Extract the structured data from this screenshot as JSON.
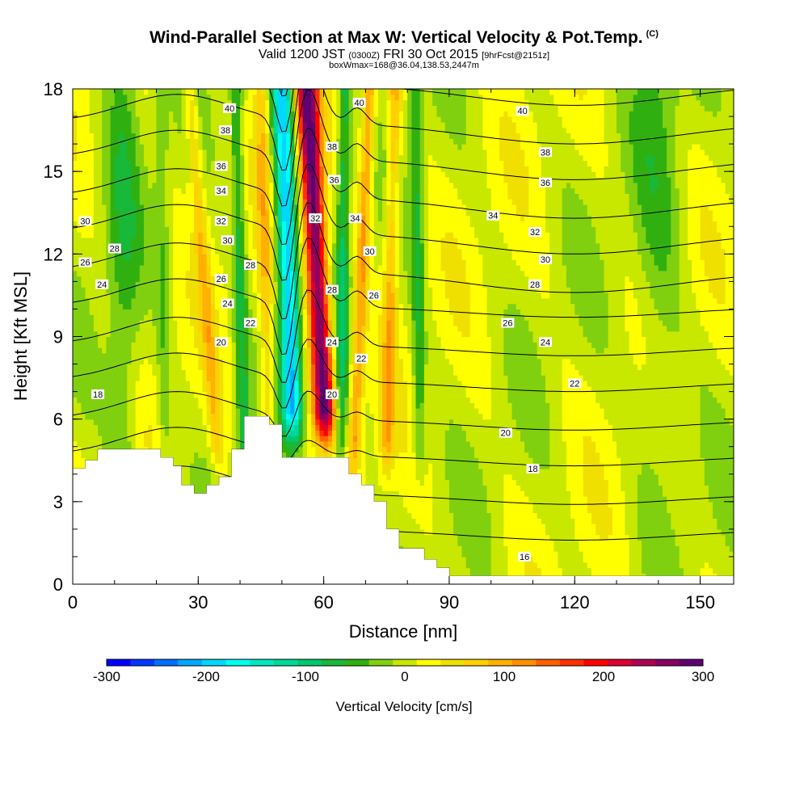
{
  "header": {
    "title": "Wind-Parallel Section at Max W: Vertical Velocity & Pot.Temp.",
    "title_tag": "(C)",
    "subtitle_main": "Valid 1200 JST",
    "subtitle_zulu": "(0300Z)",
    "subtitle_date": "FRI 30 Oct 2015",
    "subtitle_fcst": "[9hrFcst@2151z]",
    "subtitle2": "boxWmax=168@36.04,138.53,2447m"
  },
  "chart_data": {
    "type": "heatmap",
    "title": "Wind-Parallel Section at Max W: Vertical Velocity & Pot.Temp.",
    "xlabel": "Distance [nm]",
    "ylabel": "Height [Kft MSL]",
    "xlim": [
      0,
      158
    ],
    "ylim": [
      0,
      18
    ],
    "x_ticks": [
      "0",
      "30",
      "60",
      "90",
      "120",
      "150"
    ],
    "y_ticks": [
      "0",
      "3",
      "6",
      "9",
      "12",
      "15",
      "18"
    ],
    "shading_variable": "Vertical Velocity [cm/s]",
    "colorbar": {
      "label": "Vertical Velocity [cm/s]",
      "min": -300,
      "max": 300,
      "step": 25,
      "tick_values": [
        -300,
        -200,
        -100,
        0,
        100,
        200,
        300
      ],
      "tick_labels": [
        "-300",
        "-200",
        "-100",
        "0",
        "100",
        "200",
        "300"
      ],
      "colors": [
        "#0000ff",
        "#0038ff",
        "#0070ff",
        "#00a8ff",
        "#00d8ff",
        "#00ffee",
        "#00e8c0",
        "#00d898",
        "#00c870",
        "#18b838",
        "#30b010",
        "#80d010",
        "#c8e800",
        "#ffff00",
        "#f0e000",
        "#ffd000",
        "#ffb000",
        "#ff9000",
        "#ff6000",
        "#ff3000",
        "#ff0000",
        "#dd0030",
        "#b00050",
        "#880060",
        "#600070"
      ]
    },
    "velocity_updraft_band": {
      "x_base": 61,
      "x_top": 56,
      "w_peak": 300,
      "width_nm": 2.6,
      "from_height": 4.5
    },
    "velocity_downdraft_band": {
      "x_base": 53,
      "x_top": 50,
      "w_peak": -220,
      "width_nm": 2.4,
      "from_height": 4.5
    },
    "velocity_secondary_bands": [
      {
        "x_base": 35,
        "x_top": 28,
        "w": 70
      },
      {
        "x_base": 47,
        "x_top": 45,
        "w": 70
      },
      {
        "x_base": 67,
        "x_top": 71,
        "w": 110
      },
      {
        "x_base": 75,
        "x_top": 77,
        "w": 90
      },
      {
        "x_base": 83,
        "x_top": 82,
        "w": -70
      },
      {
        "x_base": 41,
        "x_top": 39,
        "w": -80
      },
      {
        "x_base": 64,
        "x_top": 65,
        "w": -90
      },
      {
        "x_base": 22,
        "x_top": 21,
        "w": -40
      }
    ],
    "isentropes": {
      "variable": "Potential Temperature [C]",
      "levels": [
        16,
        18,
        20,
        22,
        24,
        26,
        28,
        30,
        32,
        34,
        36,
        38,
        40
      ],
      "labels": [
        {
          "text": "40",
          "x": 37.5,
          "y": 17.3
        },
        {
          "text": "38",
          "x": 36.5,
          "y": 16.5
        },
        {
          "text": "36",
          "x": 35.5,
          "y": 15.2
        },
        {
          "text": "34",
          "x": 35.5,
          "y": 14.3
        },
        {
          "text": "32",
          "x": 35.5,
          "y": 13.2
        },
        {
          "text": "30",
          "x": 37.0,
          "y": 12.5
        },
        {
          "text": "28",
          "x": 42.5,
          "y": 11.6
        },
        {
          "text": "26",
          "x": 35.5,
          "y": 11.1
        },
        {
          "text": "24",
          "x": 37.0,
          "y": 10.2
        },
        {
          "text": "22",
          "x": 42.5,
          "y": 9.5
        },
        {
          "text": "20",
          "x": 35.5,
          "y": 8.8
        },
        {
          "text": "18",
          "x": 6.0,
          "y": 6.9
        },
        {
          "text": "30",
          "x": 3.0,
          "y": 13.2
        },
        {
          "text": "28",
          "x": 10.0,
          "y": 12.2
        },
        {
          "text": "26",
          "x": 3.0,
          "y": 11.7
        },
        {
          "text": "24",
          "x": 7.0,
          "y": 10.9
        },
        {
          "text": "40",
          "x": 68.5,
          "y": 17.5
        },
        {
          "text": "38",
          "x": 62.0,
          "y": 15.9
        },
        {
          "text": "36",
          "x": 62.5,
          "y": 14.7
        },
        {
          "text": "34",
          "x": 67.5,
          "y": 13.3
        },
        {
          "text": "32",
          "x": 58.0,
          "y": 13.3
        },
        {
          "text": "30",
          "x": 71.0,
          "y": 12.1
        },
        {
          "text": "28",
          "x": 62.0,
          "y": 10.7
        },
        {
          "text": "26",
          "x": 72.0,
          "y": 10.5
        },
        {
          "text": "24",
          "x": 62.0,
          "y": 8.8
        },
        {
          "text": "22",
          "x": 69.0,
          "y": 8.2
        },
        {
          "text": "20",
          "x": 62.0,
          "y": 6.9
        },
        {
          "text": "40",
          "x": 107.5,
          "y": 17.2
        },
        {
          "text": "38",
          "x": 113.0,
          "y": 15.7
        },
        {
          "text": "36",
          "x": 113.0,
          "y": 14.6
        },
        {
          "text": "34",
          "x": 100.5,
          "y": 13.4
        },
        {
          "text": "32",
          "x": 110.5,
          "y": 12.8
        },
        {
          "text": "30",
          "x": 113.0,
          "y": 11.8
        },
        {
          "text": "28",
          "x": 110.5,
          "y": 10.9
        },
        {
          "text": "26",
          "x": 104.0,
          "y": 9.5
        },
        {
          "text": "24",
          "x": 113.0,
          "y": 8.8
        },
        {
          "text": "22",
          "x": 120.0,
          "y": 7.3
        },
        {
          "text": "20",
          "x": 103.5,
          "y": 5.5
        },
        {
          "text": "18",
          "x": 110.0,
          "y": 4.2
        },
        {
          "text": "16",
          "x": 108.0,
          "y": 1.0
        }
      ]
    },
    "terrain_profile": [
      [
        0,
        4.2
      ],
      [
        3,
        4.2
      ],
      [
        3,
        4.5
      ],
      [
        6,
        4.5
      ],
      [
        6,
        4.9
      ],
      [
        21,
        4.9
      ],
      [
        21,
        4.6
      ],
      [
        24,
        4.6
      ],
      [
        24,
        4.3
      ],
      [
        26,
        4.3
      ],
      [
        26,
        3.6
      ],
      [
        29,
        3.6
      ],
      [
        29,
        3.3
      ],
      [
        32,
        3.3
      ],
      [
        32,
        3.6
      ],
      [
        35,
        3.6
      ],
      [
        35,
        3.9
      ],
      [
        38,
        3.9
      ],
      [
        38,
        4.9
      ],
      [
        41,
        4.9
      ],
      [
        41,
        6.1
      ],
      [
        47,
        6.1
      ],
      [
        47,
        5.8
      ],
      [
        50,
        5.8
      ],
      [
        50,
        4.6
      ],
      [
        66,
        4.6
      ],
      [
        66,
        4.0
      ],
      [
        69,
        4.0
      ],
      [
        69,
        3.6
      ],
      [
        72,
        3.6
      ],
      [
        72,
        3.0
      ],
      [
        75,
        3.0
      ],
      [
        75,
        2.0
      ],
      [
        78,
        2.0
      ],
      [
        78,
        1.3
      ],
      [
        84,
        1.3
      ],
      [
        84,
        0.9
      ],
      [
        87,
        0.9
      ],
      [
        87,
        0.6
      ],
      [
        90,
        0.6
      ],
      [
        90,
        0.3
      ],
      [
        158,
        0.3
      ]
    ]
  }
}
